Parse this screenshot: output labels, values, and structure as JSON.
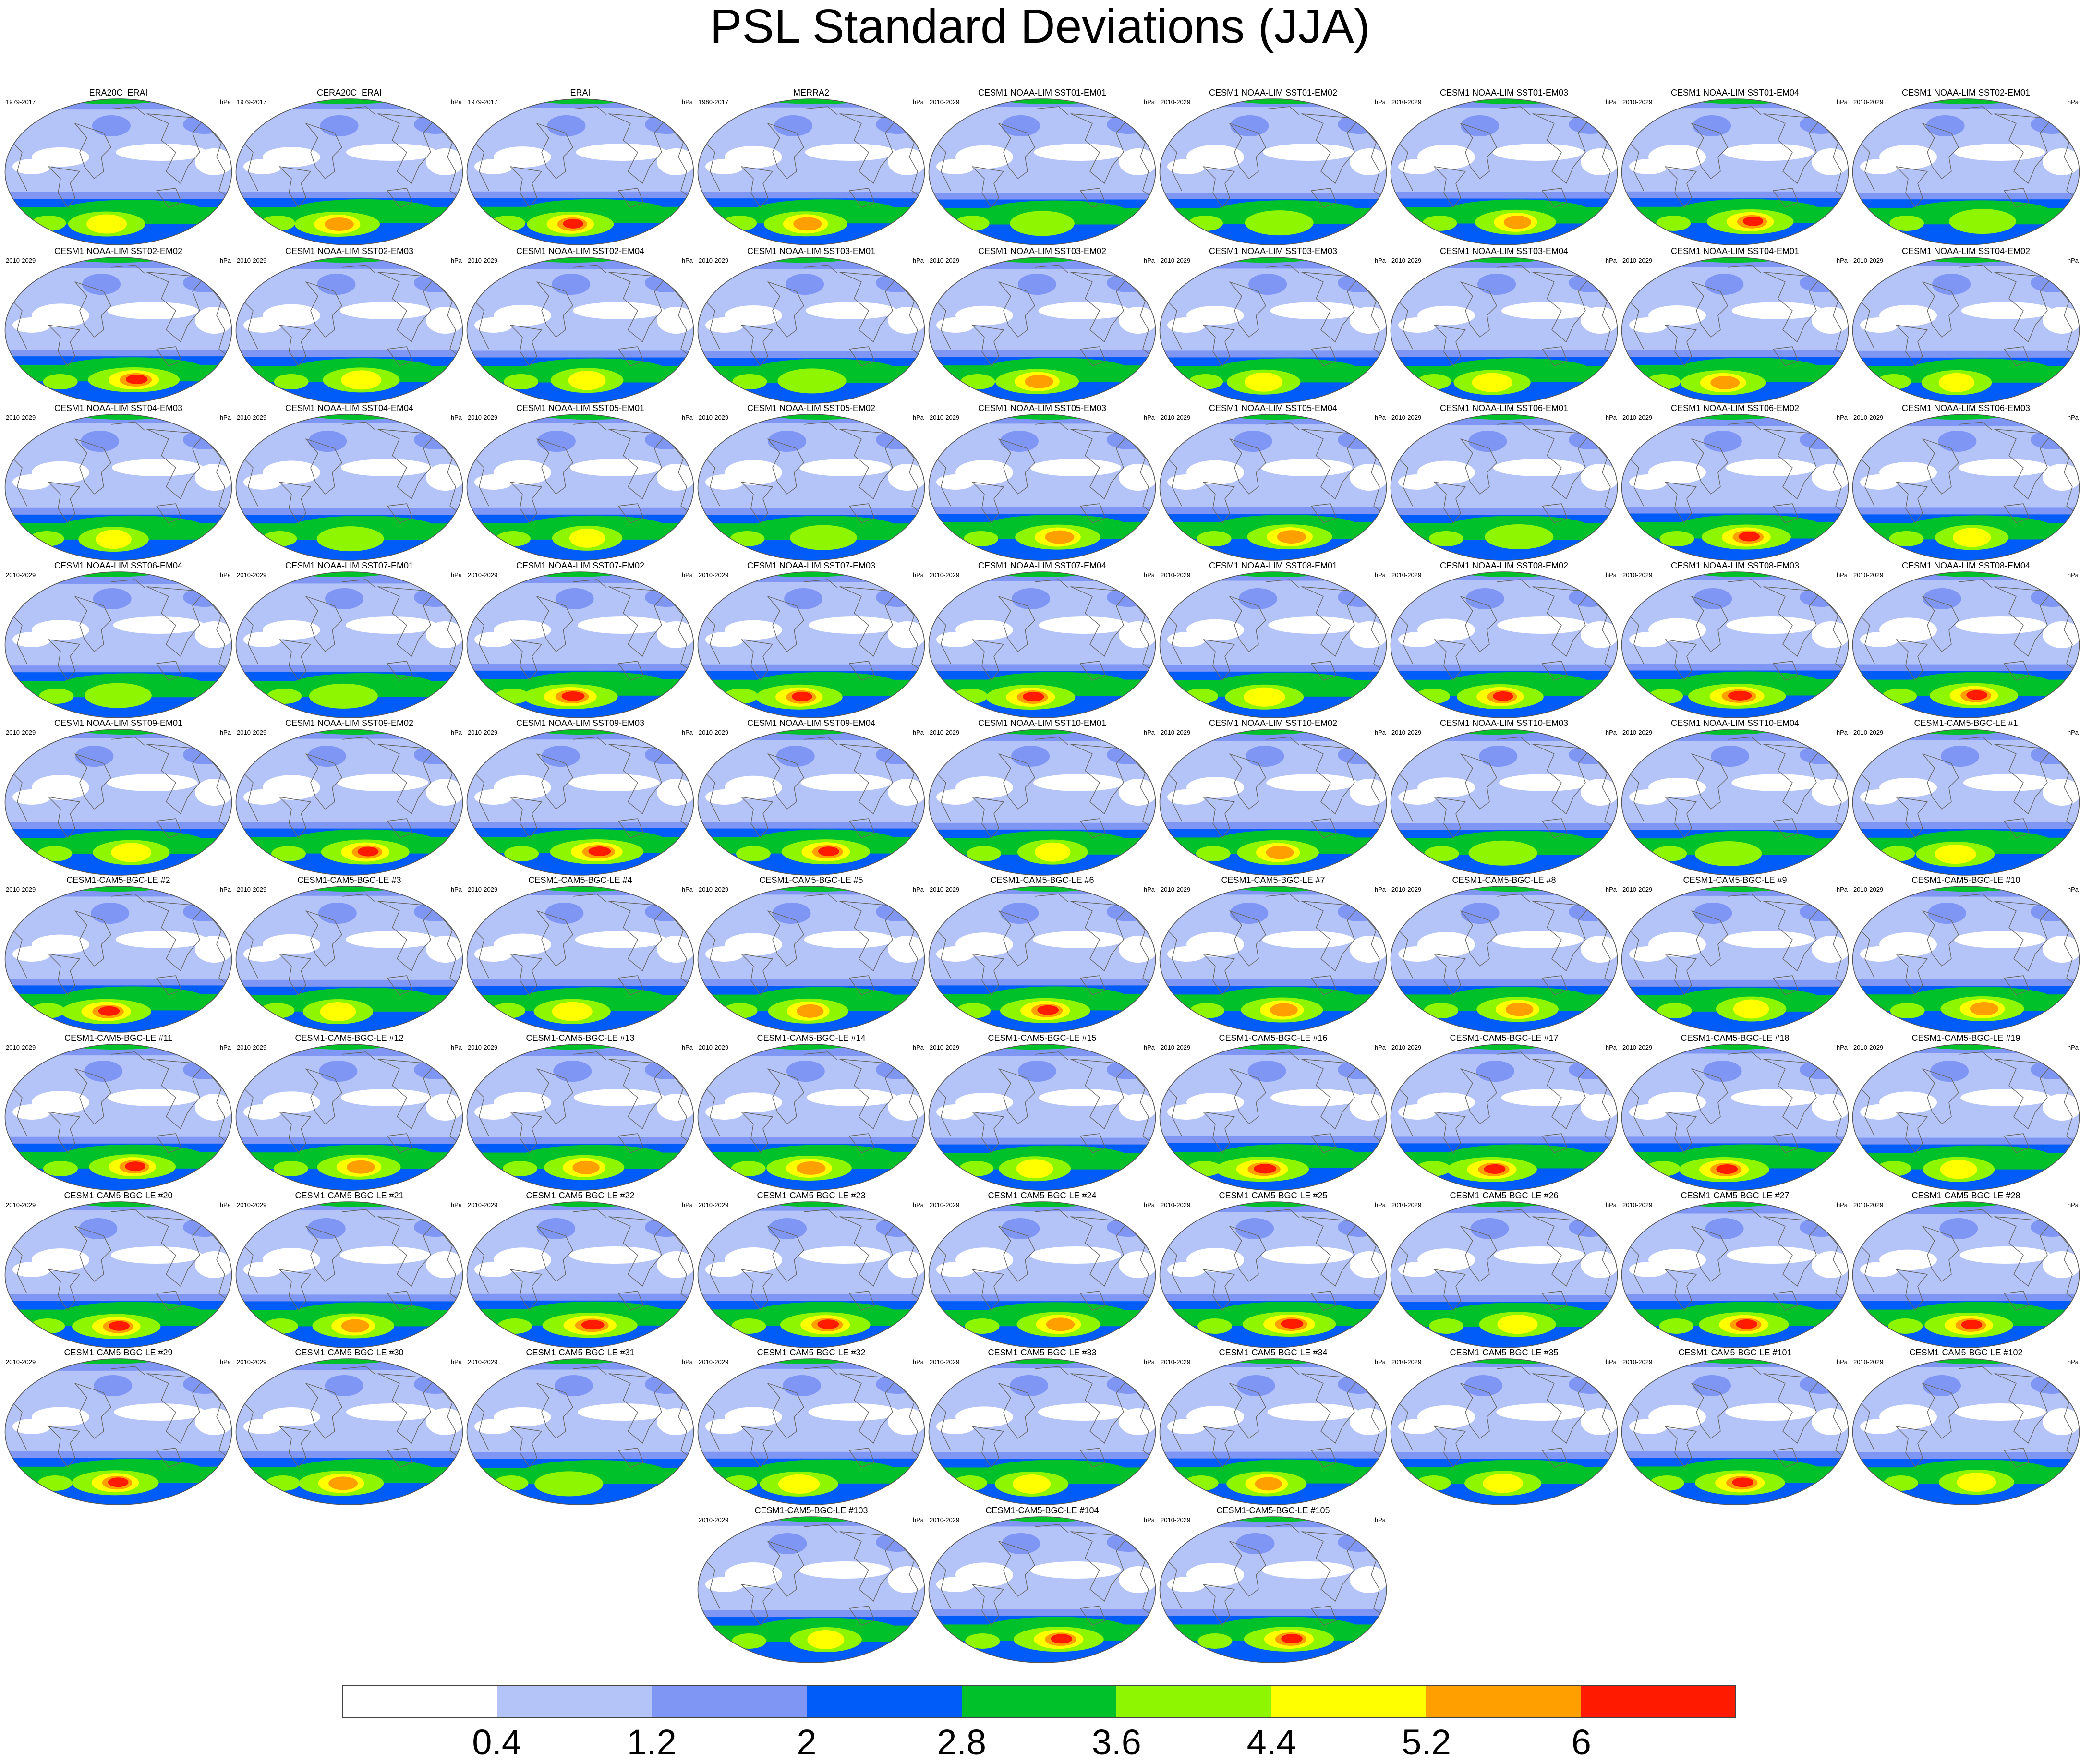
{
  "title": "PSL Standard Deviations (JJA)",
  "units": "hPa",
  "colorbar": {
    "labels": [
      "0.4",
      "1.2",
      "2",
      "2.8",
      "3.6",
      "4.4",
      "5.2",
      "6"
    ],
    "colors": [
      "#ffffff",
      "#b4c3f8",
      "#7f96f5",
      "#005cf8",
      "#00c12a",
      "#8df600",
      "#ffff00",
      "#ff9f00",
      "#ff1a00"
    ]
  },
  "panels": [
    {
      "name": "ERA20C_ERAI",
      "period": "1979-2017",
      "intensity": 0.7
    },
    {
      "name": "CERA20C_ERAI",
      "period": "1979-2017",
      "intensity": 0.8
    },
    {
      "name": "ERAI",
      "period": "1979-2017",
      "intensity": 0.82
    },
    {
      "name": "MERRA2",
      "period": "1980-2017",
      "intensity": 0.78
    },
    {
      "name": "CESM1 NOAA-LIM SST01-EM01",
      "period": "2010-2029",
      "intensity": 0.55
    },
    {
      "name": "CESM1 NOAA-LIM SST01-EM02",
      "period": "2010-2029",
      "intensity": 0.6
    },
    {
      "name": "CESM1 NOAA-LIM SST01-EM03",
      "period": "2010-2029",
      "intensity": 0.75
    },
    {
      "name": "CESM1 NOAA-LIM SST01-EM04",
      "period": "2010-2029",
      "intensity": 0.82
    },
    {
      "name": "CESM1 NOAA-LIM SST02-EM01",
      "period": "2010-2029",
      "intensity": 0.58
    },
    {
      "name": "CESM1 NOAA-LIM SST02-EM02",
      "period": "2010-2029",
      "intensity": 0.88
    },
    {
      "name": "CESM1 NOAA-LIM SST02-EM03",
      "period": "2010-2029",
      "intensity": 0.7
    },
    {
      "name": "CESM1 NOAA-LIM SST02-EM04",
      "period": "2010-2029",
      "intensity": 0.65
    },
    {
      "name": "CESM1 NOAA-LIM SST03-EM01",
      "period": "2010-2029",
      "intensity": 0.6
    },
    {
      "name": "CESM1 NOAA-LIM SST03-EM02",
      "period": "2010-2029",
      "intensity": 0.78
    },
    {
      "name": "CESM1 NOAA-LIM SST03-EM03",
      "period": "2010-2029",
      "intensity": 0.66
    },
    {
      "name": "CESM1 NOAA-LIM SST03-EM04",
      "period": "2010-2029",
      "intensity": 0.7
    },
    {
      "name": "CESM1 NOAA-LIM SST04-EM01",
      "period": "2010-2029",
      "intensity": 0.8
    },
    {
      "name": "CESM1 NOAA-LIM SST04-EM02",
      "period": "2010-2029",
      "intensity": 0.62
    },
    {
      "name": "CESM1 NOAA-LIM SST04-EM03",
      "period": "2010-2029",
      "intensity": 0.62
    },
    {
      "name": "CESM1 NOAA-LIM SST04-EM04",
      "period": "2010-2029",
      "intensity": 0.58
    },
    {
      "name": "CESM1 NOAA-LIM SST05-EM01",
      "period": "2010-2029",
      "intensity": 0.62
    },
    {
      "name": "CESM1 NOAA-LIM SST05-EM02",
      "period": "2010-2029",
      "intensity": 0.58
    },
    {
      "name": "CESM1 NOAA-LIM SST05-EM03",
      "period": "2010-2029",
      "intensity": 0.8
    },
    {
      "name": "CESM1 NOAA-LIM SST05-EM04",
      "period": "2010-2029",
      "intensity": 0.8
    },
    {
      "name": "CESM1 NOAA-LIM SST06-EM01",
      "period": "2010-2029",
      "intensity": 0.6
    },
    {
      "name": "CESM1 NOAA-LIM SST06-EM02",
      "period": "2010-2029",
      "intensity": 0.85
    },
    {
      "name": "CESM1 NOAA-LIM SST06-EM03",
      "period": "2010-2029",
      "intensity": 0.66
    },
    {
      "name": "CESM1 NOAA-LIM SST06-EM04",
      "period": "2010-2029",
      "intensity": 0.58
    },
    {
      "name": "CESM1 NOAA-LIM SST07-EM01",
      "period": "2010-2029",
      "intensity": 0.6
    },
    {
      "name": "CESM1 NOAA-LIM SST07-EM02",
      "period": "2010-2029",
      "intensity": 0.92
    },
    {
      "name": "CESM1 NOAA-LIM SST07-EM03",
      "period": "2010-2029",
      "intensity": 0.82
    },
    {
      "name": "CESM1 NOAA-LIM SST07-EM04",
      "period": "2010-2029",
      "intensity": 0.85
    },
    {
      "name": "CESM1 NOAA-LIM SST08-EM01",
      "period": "2010-2029",
      "intensity": 0.72
    },
    {
      "name": "CESM1 NOAA-LIM SST08-EM02",
      "period": "2010-2029",
      "intensity": 0.82
    },
    {
      "name": "CESM1 NOAA-LIM SST08-EM03",
      "period": "2010-2029",
      "intensity": 0.95
    },
    {
      "name": "CESM1 NOAA-LIM SST08-EM04",
      "period": "2010-2029",
      "intensity": 0.84
    },
    {
      "name": "CESM1 NOAA-LIM SST09-EM01",
      "period": "2010-2029",
      "intensity": 0.7
    },
    {
      "name": "CESM1 NOAA-LIM SST09-EM02",
      "period": "2010-2029",
      "intensity": 0.84
    },
    {
      "name": "CESM1 NOAA-LIM SST09-EM03",
      "period": "2010-2029",
      "intensity": 0.9
    },
    {
      "name": "CESM1 NOAA-LIM SST09-EM04",
      "period": "2010-2029",
      "intensity": 0.84
    },
    {
      "name": "CESM1 NOAA-LIM SST10-EM01",
      "period": "2010-2029",
      "intensity": 0.62
    },
    {
      "name": "CESM1 NOAA-LIM SST10-EM02",
      "period": "2010-2029",
      "intensity": 0.76
    },
    {
      "name": "CESM1 NOAA-LIM SST10-EM03",
      "period": "2010-2029",
      "intensity": 0.6
    },
    {
      "name": "CESM1 NOAA-LIM SST10-EM04",
      "period": "2010-2029",
      "intensity": 0.58
    },
    {
      "name": "CESM1-CAM5-BGC-LE #1",
      "period": "2010-2029",
      "intensity": 0.72
    },
    {
      "name": "CESM1-CAM5-BGC-LE #2",
      "period": "2010-2029",
      "intensity": 0.86
    },
    {
      "name": "CESM1-CAM5-BGC-LE #3",
      "period": "2010-2029",
      "intensity": 0.62
    },
    {
      "name": "CESM1-CAM5-BGC-LE #4",
      "period": "2010-2029",
      "intensity": 0.7
    },
    {
      "name": "CESM1-CAM5-BGC-LE #5",
      "period": "2010-2029",
      "intensity": 0.74
    },
    {
      "name": "CESM1-CAM5-BGC-LE #6",
      "period": "2010-2029",
      "intensity": 0.86
    },
    {
      "name": "CESM1-CAM5-BGC-LE #7",
      "period": "2010-2029",
      "intensity": 0.76
    },
    {
      "name": "CESM1-CAM5-BGC-LE #8",
      "period": "2010-2029",
      "intensity": 0.76
    },
    {
      "name": "CESM1-CAM5-BGC-LE #9",
      "period": "2010-2029",
      "intensity": 0.62
    },
    {
      "name": "CESM1-CAM5-BGC-LE #10",
      "period": "2010-2029",
      "intensity": 0.78
    },
    {
      "name": "CESM1-CAM5-BGC-LE #11",
      "period": "2010-2029",
      "intensity": 0.82
    },
    {
      "name": "CESM1-CAM5-BGC-LE #12",
      "period": "2010-2029",
      "intensity": 0.78
    },
    {
      "name": "CESM1-CAM5-BGC-LE #13",
      "period": "2010-2029",
      "intensity": 0.74
    },
    {
      "name": "CESM1-CAM5-BGC-LE #14",
      "period": "2010-2029",
      "intensity": 0.8
    },
    {
      "name": "CESM1-CAM5-BGC-LE #15",
      "period": "2010-2029",
      "intensity": 0.64
    },
    {
      "name": "CESM1-CAM5-BGC-LE #16",
      "period": "2010-2029",
      "intensity": 0.9
    },
    {
      "name": "CESM1-CAM5-BGC-LE #17",
      "period": "2010-2029",
      "intensity": 0.86
    },
    {
      "name": "CESM1-CAM5-BGC-LE #18",
      "period": "2010-2029",
      "intensity": 0.86
    },
    {
      "name": "CESM1-CAM5-BGC-LE #19",
      "period": "2010-2029",
      "intensity": 0.64
    },
    {
      "name": "CESM1-CAM5-BGC-LE #20",
      "period": "2010-2029",
      "intensity": 0.84
    },
    {
      "name": "CESM1-CAM5-BGC-LE #21",
      "period": "2010-2029",
      "intensity": 0.76
    },
    {
      "name": "CESM1-CAM5-BGC-LE #22",
      "period": "2010-2029",
      "intensity": 0.92
    },
    {
      "name": "CESM1-CAM5-BGC-LE #23",
      "period": "2010-2029",
      "intensity": 0.86
    },
    {
      "name": "CESM1-CAM5-BGC-LE #24",
      "period": "2010-2029",
      "intensity": 0.78
    },
    {
      "name": "CESM1-CAM5-BGC-LE #25",
      "period": "2010-2029",
      "intensity": 0.9
    },
    {
      "name": "CESM1-CAM5-BGC-LE #26",
      "period": "2010-2029",
      "intensity": 0.7
    },
    {
      "name": "CESM1-CAM5-BGC-LE #27",
      "period": "2010-2029",
      "intensity": 0.86
    },
    {
      "name": "CESM1-CAM5-BGC-LE #28",
      "period": "2010-2029",
      "intensity": 0.84
    },
    {
      "name": "CESM1-CAM5-BGC-LE #29",
      "period": "2010-2029",
      "intensity": 0.82
    },
    {
      "name": "CESM1-CAM5-BGC-LE #30",
      "period": "2010-2029",
      "intensity": 0.8
    },
    {
      "name": "CESM1-CAM5-BGC-LE #31",
      "period": "2010-2029",
      "intensity": 0.6
    },
    {
      "name": "CESM1-CAM5-BGC-LE #32",
      "period": "2010-2029",
      "intensity": 0.72
    },
    {
      "name": "CESM1-CAM5-BGC-LE #33",
      "period": "2010-2029",
      "intensity": 0.66
    },
    {
      "name": "CESM1-CAM5-BGC-LE #34",
      "period": "2010-2029",
      "intensity": 0.74
    },
    {
      "name": "CESM1-CAM5-BGC-LE #35",
      "period": "2010-2029",
      "intensity": 0.7
    },
    {
      "name": "CESM1-CAM5-BGC-LE #101",
      "period": "2010-2029",
      "intensity": 0.86
    },
    {
      "name": "CESM1-CAM5-BGC-LE #102",
      "period": "2010-2029",
      "intensity": 0.68
    },
    {
      "name": "CESM1-CAM5-BGC-LE #103",
      "period": "2010-2029",
      "intensity": 0.64
    },
    {
      "name": "CESM1-CAM5-BGC-LE #104",
      "period": "2010-2029",
      "intensity": 0.86
    },
    {
      "name": "CESM1-CAM5-BGC-LE #105",
      "period": "2010-2029",
      "intensity": 0.86
    }
  ]
}
